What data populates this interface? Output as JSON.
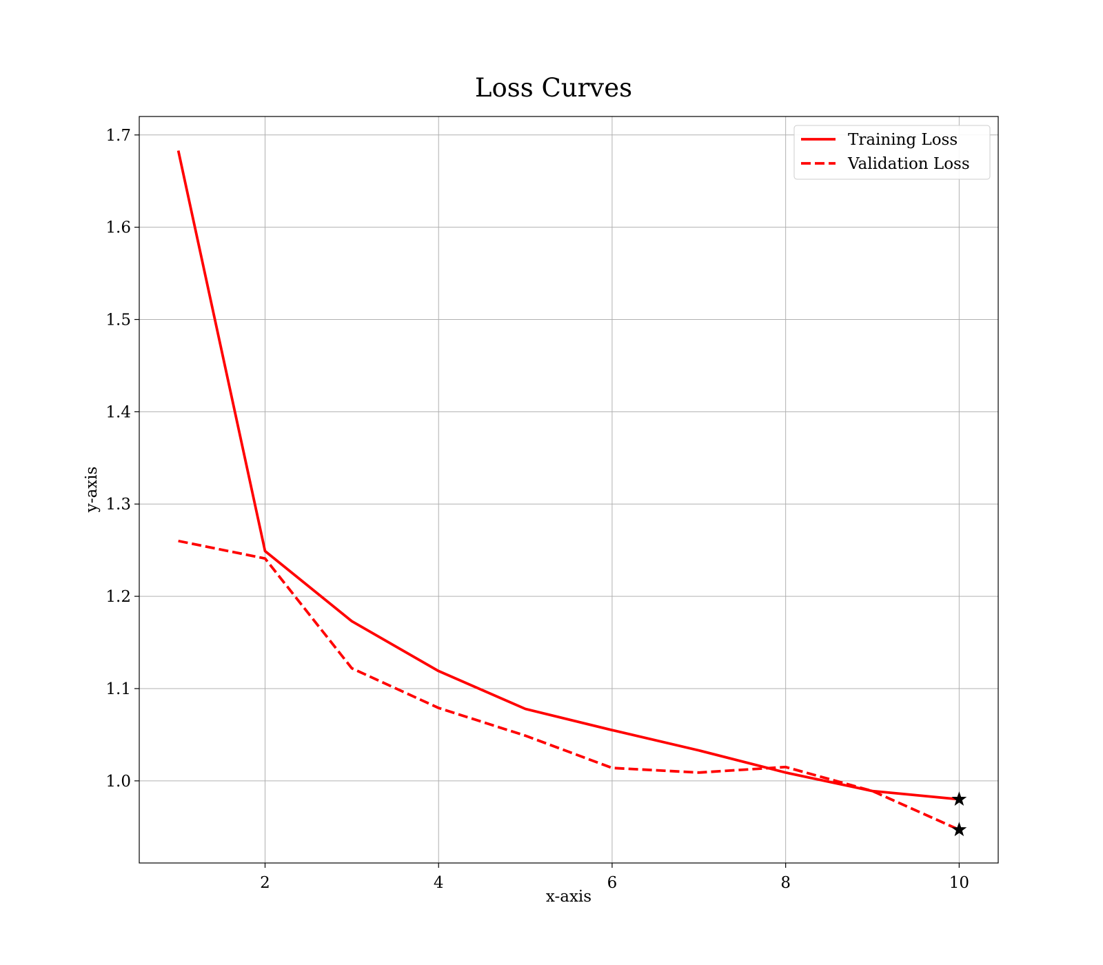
{
  "chart_data": {
    "type": "line",
    "title": "Loss Curves",
    "xlabel": "x-axis",
    "ylabel": "y-axis",
    "x": [
      1,
      2,
      3,
      4,
      5,
      6,
      7,
      8,
      9,
      10
    ],
    "series": [
      {
        "name": "Training Loss",
        "values": [
          1.683,
          1.249,
          1.173,
          1.119,
          1.078,
          1.055,
          1.033,
          1.009,
          0.989,
          0.98
        ],
        "color": "#ff0000",
        "style": "solid",
        "end_marker": "star"
      },
      {
        "name": "Validation Loss",
        "values": [
          1.26,
          1.241,
          1.122,
          1.079,
          1.049,
          1.014,
          1.009,
          1.015,
          0.989,
          0.947
        ],
        "color": "#ff0000",
        "style": "dashed",
        "end_marker": "star"
      }
    ],
    "xlim": [
      0.55,
      10.45
    ],
    "ylim": [
      0.911,
      1.72
    ],
    "xticks": [
      2,
      4,
      6,
      8,
      10
    ],
    "xtick_labels": [
      "2",
      "4",
      "6",
      "8",
      "10"
    ],
    "yticks": [
      1.0,
      1.1,
      1.2,
      1.3,
      1.4,
      1.5,
      1.6,
      1.7
    ],
    "ytick_labels": [
      "1.0",
      "1.1",
      "1.2",
      "1.3",
      "1.4",
      "1.5",
      "1.6",
      "1.7"
    ],
    "grid": true,
    "legend": "top-right"
  }
}
